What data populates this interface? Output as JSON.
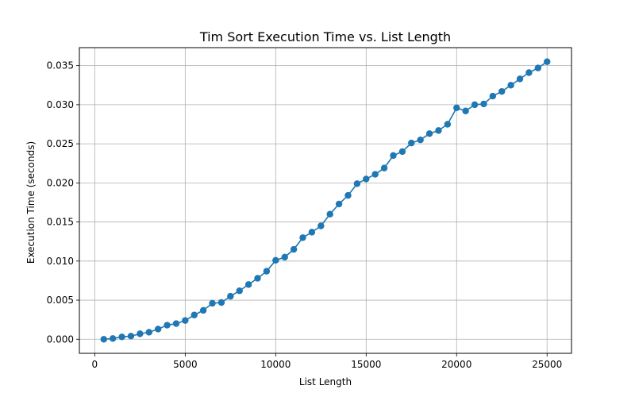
{
  "chart_data": {
    "type": "line",
    "title": "Tim Sort Execution Time vs. List Length",
    "xlabel": "List Length",
    "ylabel": "Execution Time (seconds)",
    "xlim": [
      -850,
      26350
    ],
    "ylim": [
      -0.0018,
      0.0373
    ],
    "xticks": [
      0,
      5000,
      10000,
      15000,
      20000,
      25000
    ],
    "xtick_labels": [
      "0",
      "5000",
      "10000",
      "15000",
      "20000",
      "25000"
    ],
    "yticks": [
      0.0,
      0.005,
      0.01,
      0.015,
      0.02,
      0.025,
      0.03,
      0.035
    ],
    "ytick_labels": [
      "0.000",
      "0.005",
      "0.010",
      "0.015",
      "0.020",
      "0.025",
      "0.030",
      "0.035"
    ],
    "grid": true,
    "marker": "circle",
    "color": "#1f77b4",
    "series": [
      {
        "x": [
          500,
          1000,
          1500,
          2000,
          2500,
          3000,
          3500,
          4000,
          4500,
          5000,
          5500,
          6000,
          6500,
          7000,
          7500,
          8000,
          8500,
          9000,
          9500,
          10000,
          10500,
          11000,
          11500,
          12000,
          12500,
          13000,
          13500,
          14000,
          14500,
          15000,
          15500,
          16000,
          16500,
          17000,
          17500,
          18000,
          18500,
          19000,
          19500,
          20000,
          20500,
          21000,
          21500,
          22000,
          22500,
          23000,
          23500,
          24000,
          24500,
          25000
        ],
        "y": [
          0.0,
          0.0001,
          0.0003,
          0.0004,
          0.0007,
          0.0009,
          0.0013,
          0.0018,
          0.002,
          0.0024,
          0.0031,
          0.0037,
          0.0046,
          0.0047,
          0.0055,
          0.0062,
          0.007,
          0.0078,
          0.0087,
          0.0101,
          0.0105,
          0.0115,
          0.013,
          0.0137,
          0.0145,
          0.016,
          0.0173,
          0.0184,
          0.0199,
          0.0205,
          0.0211,
          0.0219,
          0.0235,
          0.024,
          0.0251,
          0.0255,
          0.0263,
          0.0267,
          0.0275,
          0.0296,
          0.0292,
          0.03,
          0.0301,
          0.0311,
          0.0317,
          0.0325,
          0.0333,
          0.0341,
          0.0347,
          0.0355
        ]
      }
    ]
  }
}
